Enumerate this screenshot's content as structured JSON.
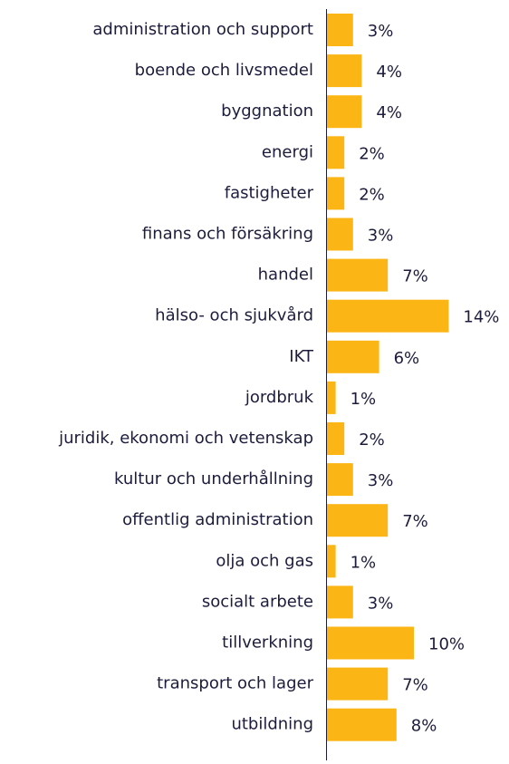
{
  "chart_data": {
    "type": "barh",
    "categories": [
      "administration och support",
      "boende och livsmedel",
      "byggnation",
      "energi",
      "fastigheter",
      "finans och försäkring",
      "handel",
      "hälso- och sjukvård",
      "IKT",
      "jordbruk",
      "juridik, ekonomi och vetenskap",
      "kultur och underhållning",
      "offentlig administration",
      "olja och gas",
      "socialt arbete",
      "tillverkning",
      "transport och lager",
      "utbildning"
    ],
    "values": [
      3,
      4,
      4,
      2,
      2,
      3,
      7,
      14,
      6,
      1,
      2,
      3,
      7,
      1,
      3,
      10,
      7,
      8
    ],
    "value_labels": [
      "3%",
      "4%",
      "4%",
      "2%",
      "2%",
      "3%",
      "7%",
      "14%",
      "6%",
      "1%",
      "2%",
      "3%",
      "7%",
      "1%",
      "3%",
      "10%",
      "7%",
      "8%"
    ],
    "color": "#fbb515"
  }
}
